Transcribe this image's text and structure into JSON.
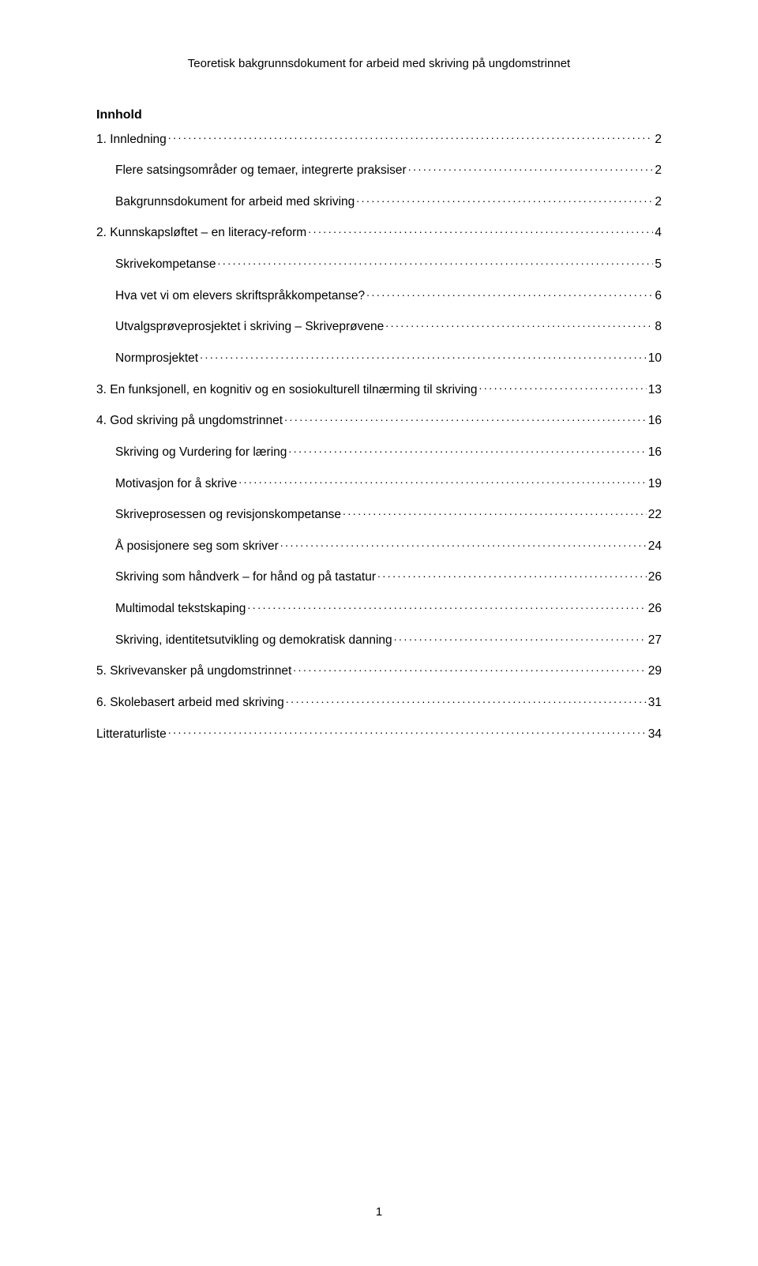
{
  "header": {
    "text": "Teoretisk bakgrunnsdokument for arbeid med skriving på ungdomstrinnet"
  },
  "toc": {
    "title": "Innhold",
    "entries": [
      {
        "label": "1. Innledning",
        "page": "2",
        "indent": 0
      },
      {
        "label": "Flere satsingsområder og temaer, integrerte praksiser",
        "page": "2",
        "indent": 1
      },
      {
        "label": "Bakgrunnsdokument for arbeid med skriving",
        "page": "2",
        "indent": 1
      },
      {
        "label": "2. Kunnskapsløftet – en literacy-reform",
        "page": "4",
        "indent": 0
      },
      {
        "label": "Skrivekompetanse",
        "page": "5",
        "indent": 1
      },
      {
        "label": "Hva vet vi om elevers skriftspråkkompetanse?",
        "page": "6",
        "indent": 1
      },
      {
        "label": "Utvalgsprøveprosjektet i skriving – Skriveprøvene",
        "page": "8",
        "indent": 1
      },
      {
        "label": "Normprosjektet",
        "page": "10",
        "indent": 1
      },
      {
        "label": "3. En funksjonell, en kognitiv og en sosiokulturell tilnærming til skriving",
        "page": "13",
        "indent": 0
      },
      {
        "label": "4. God skriving på ungdomstrinnet",
        "page": "16",
        "indent": 0
      },
      {
        "label": "Skriving og Vurdering for læring",
        "page": "16",
        "indent": 1
      },
      {
        "label": "Motivasjon for å skrive",
        "page": "19",
        "indent": 1
      },
      {
        "label": "Skriveprosessen og revisjonskompetanse",
        "page": "22",
        "indent": 1
      },
      {
        "label": "Å posisjonere seg som skriver",
        "page": "24",
        "indent": 1
      },
      {
        "label": "Skriving som håndverk – for hånd og på tastatur",
        "page": "26",
        "indent": 1
      },
      {
        "label": "Multimodal tekstskaping",
        "page": "26",
        "indent": 1
      },
      {
        "label": "Skriving, identitetsutvikling og demokratisk danning",
        "page": "27",
        "indent": 1
      },
      {
        "label": "5. Skrivevansker på ungdomstrinnet",
        "page": "29",
        "indent": 0
      },
      {
        "label": "6. Skolebasert arbeid med skriving",
        "page": "31",
        "indent": 0
      },
      {
        "label": "Litteraturliste",
        "page": "34",
        "indent": 0
      }
    ]
  },
  "footer": {
    "page_number": "1"
  }
}
